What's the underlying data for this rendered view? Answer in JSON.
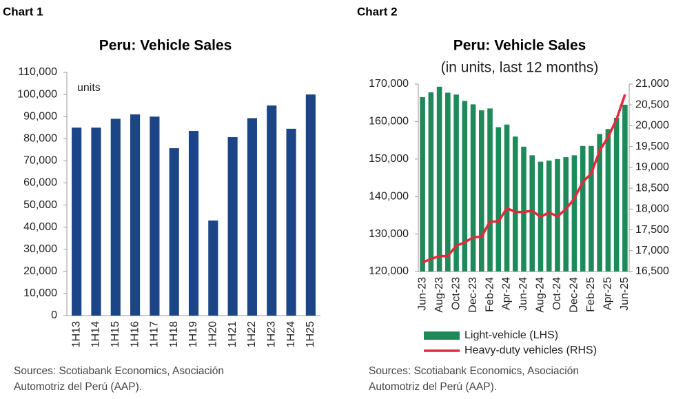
{
  "chart_data": [
    {
      "type": "bar",
      "label": "Chart 1",
      "title": "Peru: Vehicle Sales",
      "annotation": "units",
      "source": [
        "Sources: Scotiabank Economics, Asociación",
        "Automotriz del Perú (AAP)."
      ],
      "categories": [
        "1H13",
        "1H14",
        "1H15",
        "1H16",
        "1H17",
        "1H18",
        "1H19",
        "1H20",
        "1H21",
        "1H22",
        "1H23",
        "1H24",
        "1H25"
      ],
      "values": [
        85000,
        85000,
        89000,
        91000,
        90000,
        75700,
        83500,
        43000,
        80700,
        89300,
        95000,
        84500,
        100000
      ],
      "color": "#1c4587",
      "ylim": [
        0,
        110000
      ],
      "yticks": [
        0,
        {
          "value": 10000,
          "label": "10,000"
        },
        {
          "value": 20000,
          "label": "20,000"
        },
        {
          "value": 30000,
          "label": "30,000"
        },
        {
          "value": 40000,
          "label": "40,000"
        },
        {
          "value": 50000,
          "label": "50,000"
        },
        {
          "value": 60000,
          "label": "60,000"
        },
        {
          "value": 70000,
          "label": "70,000"
        },
        {
          "value": 80000,
          "label": "80,000"
        },
        {
          "value": 90000,
          "label": "90,000"
        },
        {
          "value": 100000,
          "label": "100,000"
        },
        {
          "value": 110000,
          "label": "110,000"
        }
      ],
      "grid": false
    },
    {
      "type": "bar-line",
      "label": "Chart 2",
      "title": "Peru: Vehicle Sales",
      "subtitle": "(in units, last 12 months)",
      "source": [
        "Sources: Scotiabank Economics, Asociación",
        "Automotriz del Perú (AAP)."
      ],
      "categories": [
        "Jun-23",
        null,
        "Aug-23",
        null,
        "Oct-23",
        null,
        "Dec-23",
        null,
        "Feb-24",
        null,
        "Apr-24",
        null,
        "Jun-24",
        null,
        "Aug-24",
        null,
        "Oct-24",
        null,
        "Dec-24",
        null,
        "Feb-25",
        null,
        "Apr-25",
        null,
        "Jun-25"
      ],
      "series": [
        {
          "name": "Light-vehicle (LHS)",
          "color": "#1e8a5a",
          "type": "bar",
          "values": [
            166500,
            167800,
            169300,
            167700,
            167200,
            165500,
            164600,
            163000,
            163500,
            158500,
            159200,
            156000,
            153300,
            151000,
            149300,
            149600,
            150000,
            150500,
            151000,
            153500,
            153500,
            156700,
            158000,
            161000,
            164500
          ]
        },
        {
          "name": "Heavy-duty vehicles (RHS)",
          "color": "#e8263a",
          "type": "line",
          "axis": "y2",
          "values": [
            16720,
            16800,
            16870,
            16870,
            17120,
            17200,
            17320,
            17340,
            17700,
            17700,
            18020,
            17930,
            17930,
            17960,
            17810,
            17920,
            17820,
            18000,
            18250,
            18650,
            18850,
            19400,
            19730,
            20150,
            20750
          ]
        }
      ],
      "ylim": [
        120000,
        170000
      ],
      "yticks": [
        {
          "value": 120000,
          "label": "120,000"
        },
        {
          "value": 130000,
          "label": "130,000"
        },
        {
          "value": 140000,
          "label": "140,000"
        },
        {
          "value": 150000,
          "label": "150,000"
        },
        {
          "value": 160000,
          "label": "160,000"
        },
        {
          "value": 170000,
          "label": "170,000"
        }
      ],
      "y2lim": [
        16500,
        21000
      ],
      "y2ticks": [
        {
          "value": 16500,
          "label": "16,500"
        },
        {
          "value": 17000,
          "label": "17,000"
        },
        {
          "value": 17500,
          "label": "17,500"
        },
        {
          "value": 18000,
          "label": "18,000"
        },
        {
          "value": 18500,
          "label": "18,500"
        },
        {
          "value": 19000,
          "label": "19,000"
        },
        {
          "value": 19500,
          "label": "19,500"
        },
        {
          "value": 20000,
          "label": "20,000"
        },
        {
          "value": 20500,
          "label": "20,500"
        },
        {
          "value": 21000,
          "label": "21,000"
        }
      ],
      "grid": false
    }
  ]
}
